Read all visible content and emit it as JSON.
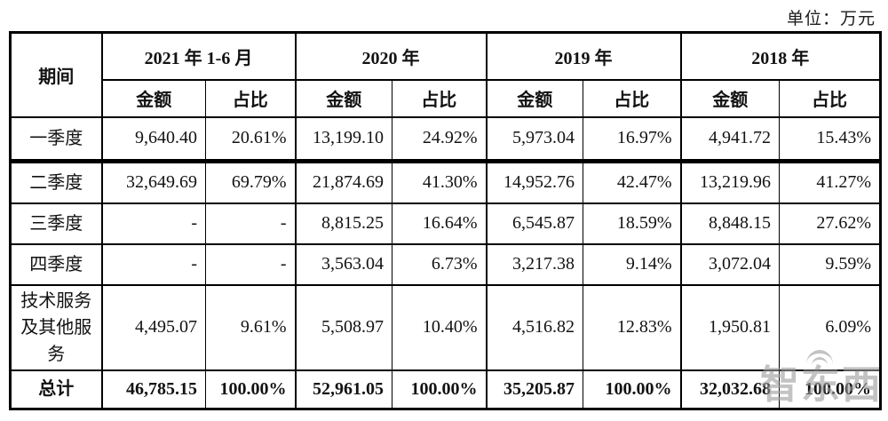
{
  "unit_label": "单位：万元",
  "watermark": {
    "text": "智东西"
  },
  "colors": {
    "border": "#000000",
    "text": "#121212",
    "watermark": "#9e9e9e"
  },
  "table": {
    "header": {
      "period": "期间",
      "amount_label": "金额",
      "share_label": "占比",
      "year_groups": [
        {
          "label": "2021 年 1-6 月"
        },
        {
          "label": "2020 年"
        },
        {
          "label": "2019 年"
        },
        {
          "label": "2018 年"
        }
      ]
    },
    "rows": [
      {
        "label": "一季度",
        "cells": [
          "9,640.40",
          "20.61%",
          "13,199.10",
          "24.92%",
          "5,973.04",
          "16.97%",
          "4,941.72",
          "15.43%"
        ]
      },
      {
        "label": "二季度",
        "cells": [
          "32,649.69",
          "69.79%",
          "21,874.69",
          "41.30%",
          "14,952.76",
          "42.47%",
          "13,219.96",
          "41.27%"
        ]
      },
      {
        "label": "三季度",
        "cells": [
          "-",
          "-",
          "8,815.25",
          "16.64%",
          "6,545.87",
          "18.59%",
          "8,848.15",
          "27.62%"
        ]
      },
      {
        "label": "四季度",
        "cells": [
          "-",
          "-",
          "3,563.04",
          "6.73%",
          "3,217.38",
          "9.14%",
          "3,072.04",
          "9.59%"
        ]
      },
      {
        "label": "技术服务及其他服务",
        "cells": [
          "4,495.07",
          "9.61%",
          "5,508.97",
          "10.40%",
          "4,516.82",
          "12.83%",
          "1,950.81",
          "6.09%"
        ]
      }
    ],
    "total_row": {
      "label": "总计",
      "cells": [
        "46,785.15",
        "100.00%",
        "52,961.05",
        "100.00%",
        "35,205.87",
        "100.00%",
        "32,032.68",
        "100.00%"
      ]
    }
  }
}
